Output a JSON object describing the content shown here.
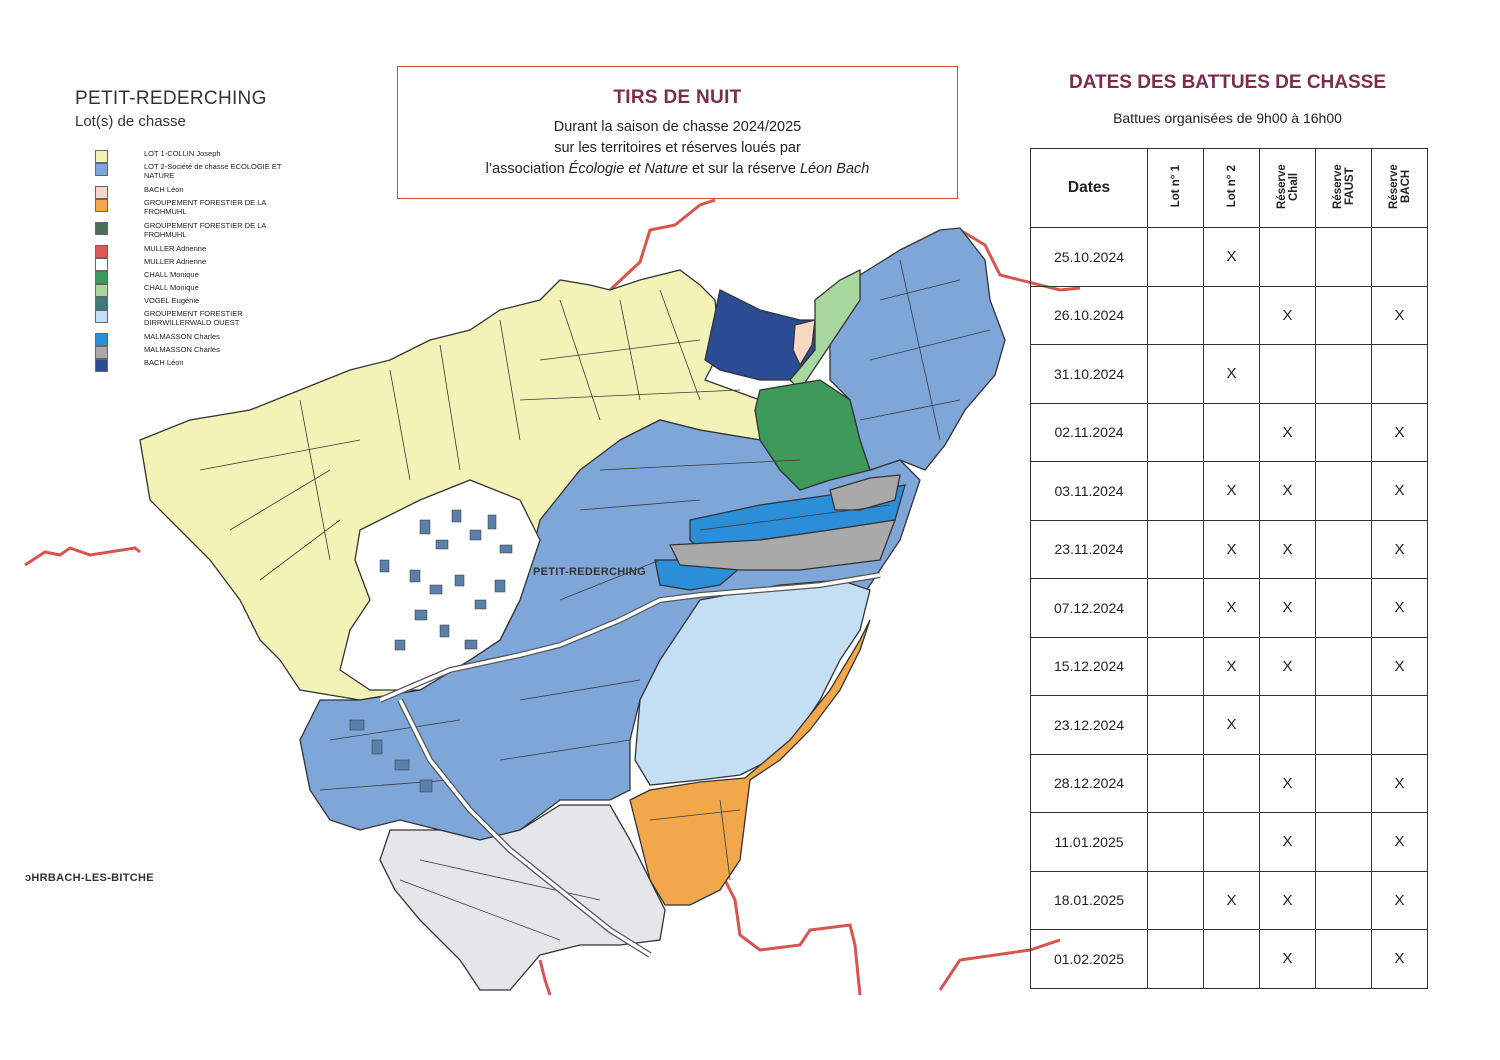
{
  "legend": {
    "title": "PETIT-REDERCHING",
    "subtitle": "Lot(s) de chasse",
    "items": [
      {
        "label": "LOT 1-COLLIN Joseph",
        "color": "#f3f3b8"
      },
      {
        "label": "LOT 2-Société de chasse ECOLOGIE ET NATURE",
        "color": "#7ea6d8"
      },
      {
        "label": "BACH Léon",
        "color": "#f6d8c4"
      },
      {
        "label": "GROUPEMENT FORESTIER DE LA FROHMUHL",
        "color": "#f2a84a"
      },
      {
        "label": "GROUPEMENT FORESTIER DE LA FROHMUHL",
        "color": "#4e6e5a"
      },
      {
        "label": "MULLER Adrienne",
        "color": "#e15a5a"
      },
      {
        "label": "MULLER Adrienne",
        "color": "#ffffff"
      },
      {
        "label": "CHALL Monique",
        "color": "#3e9a5a"
      },
      {
        "label": "CHALL Monique",
        "color": "#a8d8a0"
      },
      {
        "label": "VOGEL Eugénie",
        "color": "#3f7a78"
      },
      {
        "label": "GROUPEMENT FORESTIER DIRRWILLERWALD OUEST",
        "color": "#c4def4"
      },
      {
        "label": "MALMASSON Charles",
        "color": "#2a8fd8"
      },
      {
        "label": "MALMASSON Charles",
        "color": "#a9a9a9"
      },
      {
        "label": "BACH Léon",
        "color": "#2a4d96"
      }
    ]
  },
  "night": {
    "title": "TIRS DE NUIT",
    "line1": "Durant la saison de chasse 2024/2025",
    "line2": "sur les territoires et réserves loués par",
    "line3_pre": "l’association ",
    "line3_em1": "Écologie et Nature",
    "line3_mid": " et sur la réserve ",
    "line3_em2": "Léon Bach"
  },
  "map": {
    "village_label": "PETIT-REDERCHING",
    "neighbor_label": "ɔHRBACH-LES-BITCHE"
  },
  "battues": {
    "title": "DATES DES BATTUES DE CHASSE",
    "subtitle": "Battues organisées de 9h00 à 16h00",
    "headers": [
      "Dates",
      "Lot n° 1",
      "Lot n° 2",
      "Réserve Chall",
      "Réserve FAUST",
      "Réserve BACH"
    ],
    "rows": [
      [
        "25.10.2024",
        "",
        "X",
        "",
        "",
        ""
      ],
      [
        "26.10.2024",
        "",
        "",
        "X",
        "",
        "X"
      ],
      [
        "31.10.2024",
        "",
        "X",
        "",
        "",
        ""
      ],
      [
        "02.11.2024",
        "",
        "",
        "X",
        "",
        "X"
      ],
      [
        "03.11.2024",
        "",
        "X",
        "X",
        "",
        "X"
      ],
      [
        "23.11.2024",
        "",
        "X",
        "X",
        "",
        "X"
      ],
      [
        "07.12.2024",
        "",
        "X",
        "X",
        "",
        "X"
      ],
      [
        "15.12.2024",
        "",
        "X",
        "X",
        "",
        "X"
      ],
      [
        "23.12.2024",
        "",
        "X",
        "",
        "",
        ""
      ],
      [
        "28.12.2024",
        "",
        "",
        "X",
        "",
        "X"
      ],
      [
        "11.01.2025",
        "",
        "",
        "X",
        "",
        "X"
      ],
      [
        "18.01.2025",
        "",
        "X",
        "X",
        "",
        "X"
      ],
      [
        "01.02.2025",
        "",
        "",
        "X",
        "",
        "X"
      ]
    ]
  }
}
